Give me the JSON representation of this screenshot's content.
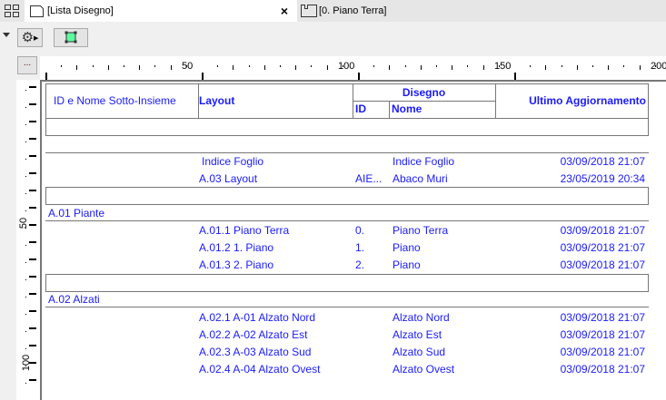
{
  "tabs": [
    {
      "label": "[Lista Disegno]",
      "active": true,
      "close": "×"
    },
    {
      "label": "[0. Piano Terra]",
      "active": false
    }
  ],
  "toolbar": {
    "more_label": "..."
  },
  "ruler": {
    "top_labels": [
      "50",
      "100",
      "150",
      "200"
    ],
    "left_labels": [
      "50",
      "100"
    ]
  },
  "header": {
    "col_subset": "ID e Nome Sotto-Insieme",
    "col_layout": "Layout",
    "group_drawing": "Disegno",
    "col_id": "ID",
    "col_name": "Nome",
    "col_updated": "Ultimo Aggiornamento"
  },
  "rows_top": [
    {
      "layout": "Indice Foglio",
      "id": "",
      "name": "Indice Foglio",
      "date": "03/09/2018 21:07"
    },
    {
      "layout": "A.03 Layout",
      "id": "AIE...",
      "name": "Abaco Muri",
      "date": "23/05/2019 20:34"
    }
  ],
  "groups": [
    {
      "title": "A.01 Piante",
      "rows": [
        {
          "layout": "A.01.1 Piano Terra",
          "id": "0.",
          "name": "Piano Terra",
          "date": "03/09/2018 21:07"
        },
        {
          "layout": "A.01.2 1. Piano",
          "id": "1.",
          "name": "Piano",
          "date": "03/09/2018 21:07"
        },
        {
          "layout": "A.01.3 2. Piano",
          "id": "2.",
          "name": "Piano",
          "date": "03/09/2018 21:07"
        }
      ]
    },
    {
      "title": "A.02 Alzati",
      "rows": [
        {
          "layout": "A.02.1 A-01 Alzato Nord",
          "id": "",
          "name": "Alzato Nord",
          "date": "03/09/2018 21:07"
        },
        {
          "layout": "A.02.2 A-02 Alzato Est",
          "id": "",
          "name": "Alzato Est",
          "date": "03/09/2018 21:07"
        },
        {
          "layout": "A.02.3 A-03 Alzato Sud",
          "id": "",
          "name": "Alzato Sud",
          "date": "03/09/2018 21:07"
        },
        {
          "layout": "A.02.4 A-04 Alzato Ovest",
          "id": "",
          "name": "Alzato Ovest",
          "date": "03/09/2018 21:07"
        }
      ]
    }
  ],
  "colors": {
    "text": "#1a1aff",
    "accent_green": "#5dfba0"
  }
}
